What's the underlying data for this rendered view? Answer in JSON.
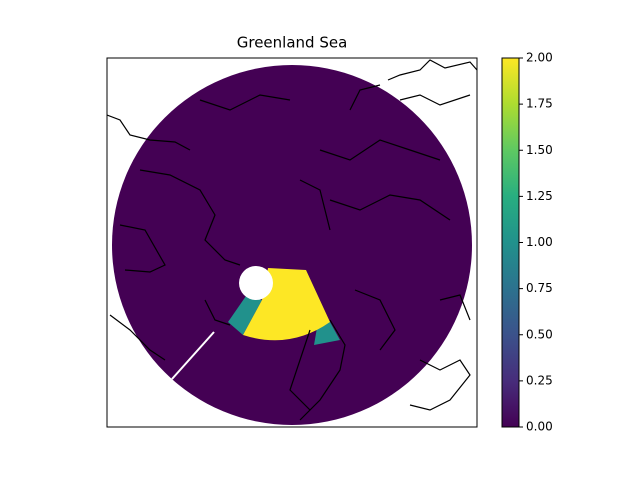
{
  "chart_data": {
    "type": "map",
    "title": "Greenland Sea",
    "colorbar": {
      "colormap": "viridis",
      "clim": [
        0,
        2
      ],
      "ticks": [
        {
          "value": 0,
          "label": "0.00"
        },
        {
          "value": 0.25,
          "label": "0.25"
        },
        {
          "value": 0.5,
          "label": "0.50"
        },
        {
          "value": 0.75,
          "label": "0.75"
        },
        {
          "value": 1,
          "label": "1.00"
        },
        {
          "value": 1.25,
          "label": "1.25"
        },
        {
          "value": 1.5,
          "label": "1.50"
        },
        {
          "value": 1.75,
          "label": "1.75"
        },
        {
          "value": 2,
          "label": "2.00"
        }
      ]
    }
  }
}
